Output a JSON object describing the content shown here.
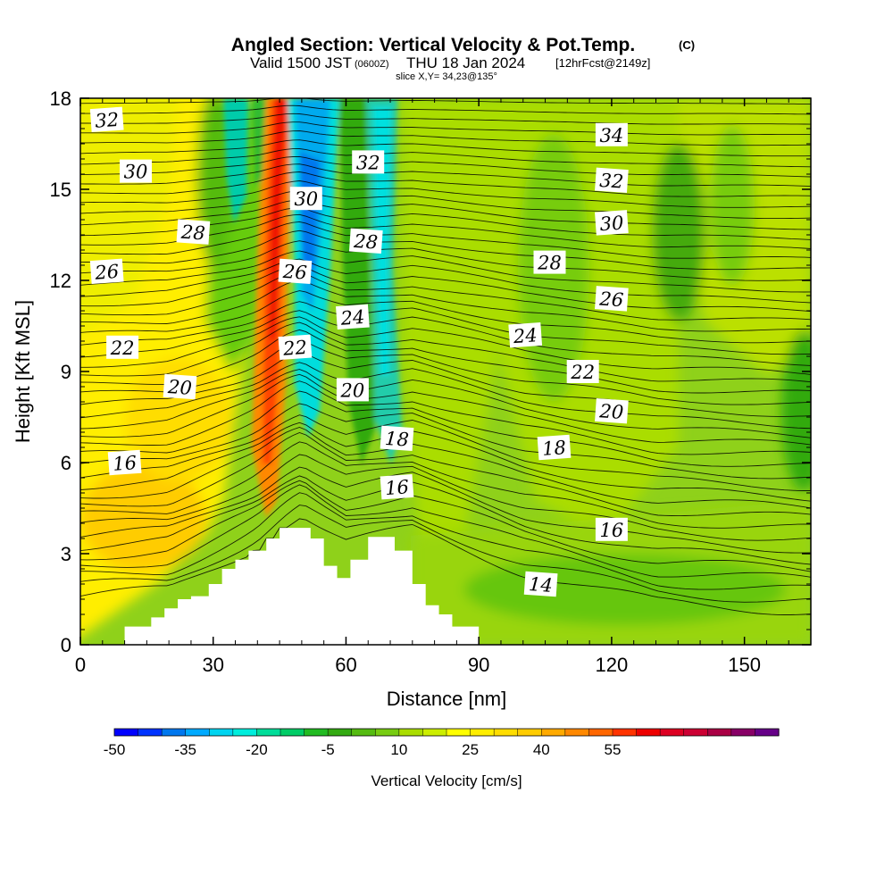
{
  "header": {
    "title": "Angled Section: Vertical Velocity & Pot.Temp.",
    "title_unit": "(C)",
    "valid_prefix": "Valid 1500 JST",
    "valid_utc": "(0600Z)",
    "valid_date": "THU 18 Jan 2024",
    "forecast": "[12hrFcst@2149z]",
    "slice": "slice X,Y= 34,23@135°"
  },
  "colorbar": {
    "label": "Vertical Velocity [cm/s]",
    "ticks": [
      "-50",
      "-35",
      "-20",
      "-5",
      "10",
      "25",
      "40",
      "55"
    ],
    "colors": [
      "#0000ff",
      "#0033ff",
      "#0077ee",
      "#00aaff",
      "#00d4f0",
      "#00eedd",
      "#00dd99",
      "#00cc66",
      "#22bb22",
      "#33aa11",
      "#55bb11",
      "#77cc11",
      "#aadd00",
      "#ccee00",
      "#ffff00",
      "#ffee00",
      "#ffdd00",
      "#ffcc00",
      "#ffaa00",
      "#ff8800",
      "#ff6600",
      "#ff3300",
      "#ee0000",
      "#dd0022",
      "#cc0033",
      "#aa0044",
      "#880066",
      "#660088"
    ]
  },
  "chart_data": {
    "type": "heatmap",
    "title": "Angled Section: Vertical Velocity & Pot.Temp.",
    "xlabel": "Distance [nm]",
    "ylabel": "Height [Kft MSL]",
    "xlim": [
      0,
      165
    ],
    "ylim": [
      0,
      18
    ],
    "xticks": [
      "0",
      "30",
      "60",
      "90",
      "120",
      "150"
    ],
    "yticks": [
      "0",
      "3",
      "6",
      "9",
      "12",
      "15",
      "18"
    ],
    "filled_field": "Vertical Velocity [cm/s]",
    "contour_field": "Potential Temperature (C)",
    "contour_interval": 1,
    "terrain": [
      [
        10,
        0.6
      ],
      [
        16,
        0.6
      ],
      [
        16,
        0.9
      ],
      [
        19,
        0.9
      ],
      [
        19,
        1.2
      ],
      [
        22,
        1.2
      ],
      [
        22,
        1.5
      ],
      [
        25,
        1.5
      ],
      [
        25,
        1.6
      ],
      [
        29,
        1.6
      ],
      [
        29,
        2
      ],
      [
        32,
        2
      ],
      [
        32,
        2.5
      ],
      [
        35,
        2.5
      ],
      [
        35,
        2.8
      ],
      [
        38,
        2.8
      ],
      [
        38,
        3.1
      ],
      [
        42,
        3.1
      ],
      [
        42,
        3.5
      ],
      [
        45,
        3.5
      ],
      [
        45,
        3.85
      ],
      [
        52,
        3.85
      ],
      [
        52,
        3.5
      ],
      [
        55,
        3.5
      ],
      [
        55,
        2.6
      ],
      [
        58,
        2.6
      ],
      [
        58,
        2.2
      ],
      [
        61,
        2.2
      ],
      [
        61,
        2.8
      ],
      [
        65,
        2.8
      ],
      [
        65,
        3.55
      ],
      [
        71,
        3.55
      ],
      [
        71,
        3.1
      ],
      [
        75,
        3.1
      ],
      [
        75,
        2
      ],
      [
        78,
        2
      ],
      [
        78,
        1.3
      ],
      [
        81,
        1.3
      ],
      [
        81,
        1
      ],
      [
        84,
        1
      ],
      [
        84,
        0.6
      ],
      [
        90,
        0.6
      ]
    ],
    "contour_labels": [
      {
        "text": "32",
        "x": 6,
        "y": 17.3
      },
      {
        "text": "30",
        "x": 12.5,
        "y": 15.6
      },
      {
        "text": "28",
        "x": 25.5,
        "y": 13.6
      },
      {
        "text": "26",
        "x": 6,
        "y": 12.3
      },
      {
        "text": "22",
        "x": 9.5,
        "y": 9.8
      },
      {
        "text": "20",
        "x": 22.5,
        "y": 8.5
      },
      {
        "text": "16",
        "x": 10,
        "y": 6.0
      },
      {
        "text": "30",
        "x": 51,
        "y": 14.7
      },
      {
        "text": "26",
        "x": 48.5,
        "y": 12.3
      },
      {
        "text": "22",
        "x": 48.5,
        "y": 9.8
      },
      {
        "text": "32",
        "x": 65,
        "y": 15.9
      },
      {
        "text": "28",
        "x": 64.5,
        "y": 13.3
      },
      {
        "text": "24",
        "x": 61.5,
        "y": 10.8
      },
      {
        "text": "20",
        "x": 61.5,
        "y": 8.4
      },
      {
        "text": "18",
        "x": 71.5,
        "y": 6.8
      },
      {
        "text": "16",
        "x": 71.5,
        "y": 5.2
      },
      {
        "text": "34",
        "x": 120,
        "y": 16.8
      },
      {
        "text": "32",
        "x": 120,
        "y": 15.3
      },
      {
        "text": "30",
        "x": 120,
        "y": 13.9
      },
      {
        "text": "28",
        "x": 106,
        "y": 12.6
      },
      {
        "text": "26",
        "x": 120,
        "y": 11.4
      },
      {
        "text": "24",
        "x": 100.5,
        "y": 10.2
      },
      {
        "text": "22",
        "x": 113.5,
        "y": 9.0
      },
      {
        "text": "20",
        "x": 120,
        "y": 7.7
      },
      {
        "text": "18",
        "x": 107,
        "y": 6.5
      },
      {
        "text": "16",
        "x": 120,
        "y": 3.8
      },
      {
        "text": "14",
        "x": 104,
        "y": 2.0
      }
    ]
  }
}
